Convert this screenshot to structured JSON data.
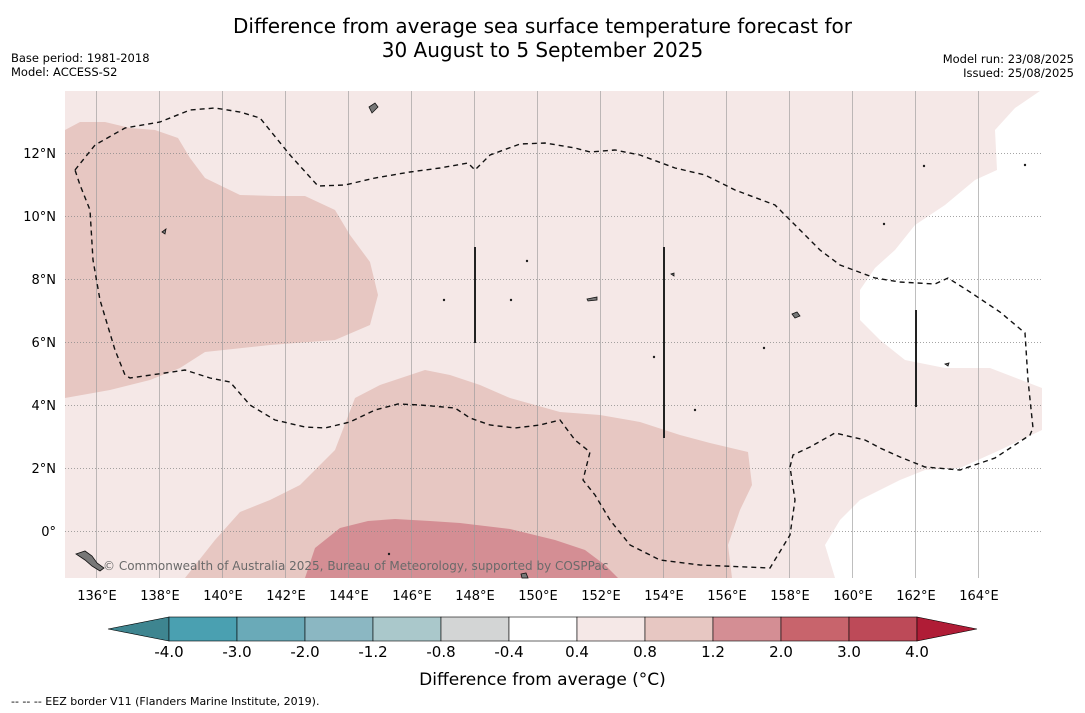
{
  "title": {
    "line1": "Difference from average sea surface temperature forecast for",
    "line2": "30 August to 5 September 2025"
  },
  "meta_left": {
    "base_period": "Base period: 1981-2018",
    "model": "Model: ACCESS-S2"
  },
  "meta_right": {
    "model_run": "Model run: 23/08/2025",
    "issued": "Issued: 25/08/2025"
  },
  "map": {
    "lat_labels": [
      "12°N",
      "10°N",
      "8°N",
      "6°N",
      "4°N",
      "2°N",
      "0°"
    ],
    "lon_labels": [
      "136°E",
      "138°E",
      "140°E",
      "142°E",
      "144°E",
      "146°E",
      "148°E",
      "150°E",
      "152°E",
      "154°E",
      "156°E",
      "158°E",
      "160°E",
      "162°E",
      "164°E"
    ],
    "credit": "© Commonwealth of Australia 2025, Bureau of Meteorology, supported by COSPPac"
  },
  "colorbar": {
    "tick_labels": [
      "-4.0",
      "-3.0",
      "-2.0",
      "-1.2",
      "-0.8",
      "-0.4",
      "0.4",
      "0.8",
      "1.2",
      "2.0",
      "3.0",
      "4.0"
    ],
    "colors": [
      "#3e8590",
      "#4aa0b1",
      "#6aaab8",
      "#8bb7c2",
      "#aac8cb",
      "#d3d5d5",
      "#ffffff",
      "#f5e8e7",
      "#e7c7c2",
      "#d48e94",
      "#c8646c",
      "#bd4a58",
      "#b01c36"
    ],
    "label": "Difference from average (°C)"
  },
  "footer": "--  --  -- EEZ border V11 (Flanders Marine Institute, 2019)."
}
